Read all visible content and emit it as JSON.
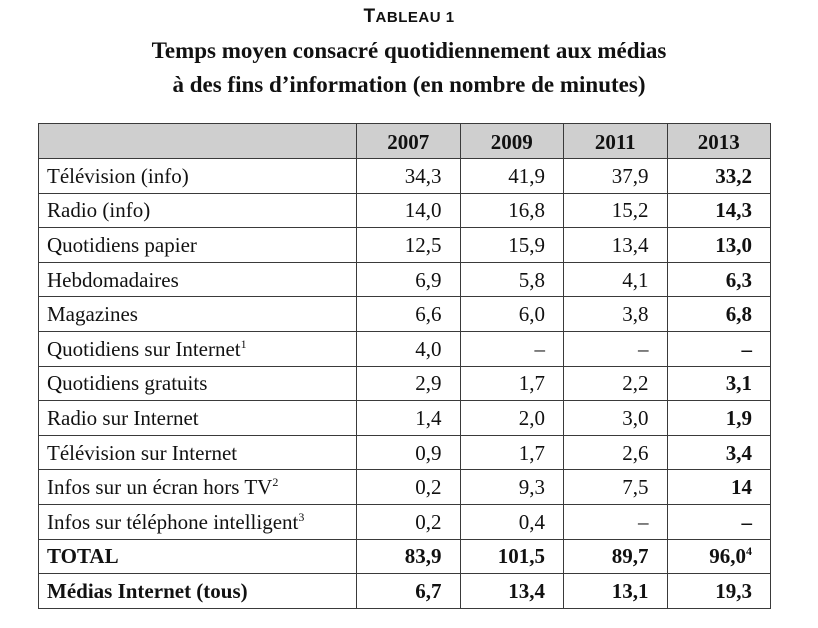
{
  "table": {
    "caption_label_first": "T",
    "caption_label_rest": "ABLEAU 1",
    "title_line_1": "Temps moyen consacré quotidiennement aux médias",
    "title_line_2": "à des fins d’information (en nombre de minutes)",
    "columns": [
      "2007",
      "2009",
      "2011",
      "2013"
    ],
    "rows": [
      {
        "label": "Télévision (info)",
        "note": "",
        "values": [
          "34,3",
          "41,9",
          "37,9",
          "33,2"
        ],
        "note2013": ""
      },
      {
        "label": "Radio (info)",
        "note": "",
        "values": [
          "14,0",
          "16,8",
          "15,2",
          "14,3"
        ],
        "note2013": ""
      },
      {
        "label": "Quotidiens papier",
        "note": "",
        "values": [
          "12,5",
          "15,9",
          "13,4",
          "13,0"
        ],
        "note2013": ""
      },
      {
        "label": "Hebdomadaires",
        "note": "",
        "values": [
          "6,9",
          "5,8",
          "4,1",
          "6,3"
        ],
        "note2013": ""
      },
      {
        "label": "Magazines",
        "note": "",
        "values": [
          "6,6",
          "6,0",
          "3,8",
          "6,8"
        ],
        "note2013": ""
      },
      {
        "label": "Quotidiens sur Internet",
        "note": "1",
        "values": [
          "4,0",
          "–",
          "–",
          "–"
        ],
        "note2013": ""
      },
      {
        "label": "Quotidiens gratuits",
        "note": "",
        "values": [
          "2,9",
          "1,7",
          "2,2",
          "3,1"
        ],
        "note2013": ""
      },
      {
        "label": "Radio sur Internet",
        "note": "",
        "values": [
          "1,4",
          "2,0",
          "3,0",
          "1,9"
        ],
        "note2013": ""
      },
      {
        "label": "Télévision sur Internet",
        "note": "",
        "values": [
          "0,9",
          "1,7",
          "2,6",
          "3,4"
        ],
        "note2013": ""
      },
      {
        "label": "Infos sur un écran hors TV",
        "note": "2",
        "values": [
          "0,2",
          "9,3",
          "7,5",
          "14"
        ],
        "note2013": ""
      },
      {
        "label": "Infos sur téléphone intelligent",
        "note": "3",
        "values": [
          "0,2",
          "0,4",
          "–",
          "–"
        ],
        "note2013": ""
      }
    ],
    "total": {
      "label": "TOTAL",
      "values": [
        "83,9",
        "101,5",
        "89,7",
        "96,0"
      ],
      "note2013": "4"
    },
    "internet": {
      "label": "Médias Internet (tous)",
      "values": [
        "6,7",
        "13,4",
        "13,1",
        "19,3"
      ]
    }
  }
}
